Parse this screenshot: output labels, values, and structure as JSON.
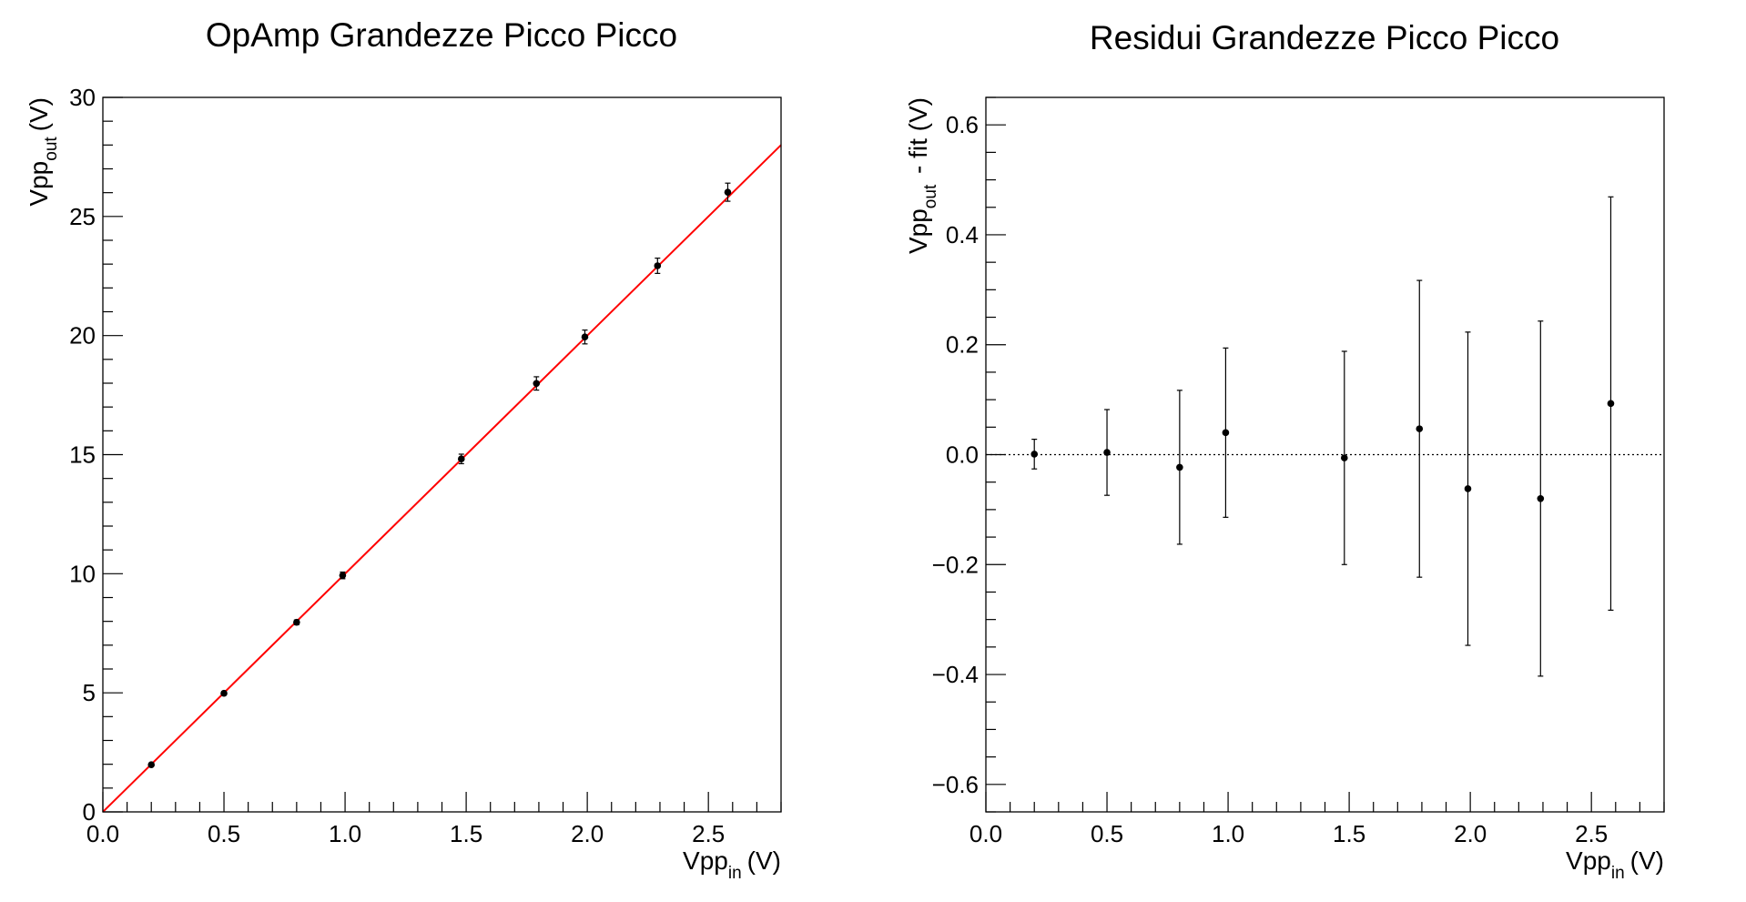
{
  "chart_data": [
    {
      "type": "scatter",
      "title": "OpAmp Grandezze Picco Picco",
      "xlabel": {
        "main": "Vpp",
        "sub": "in",
        "unit": "(V)"
      },
      "ylabel": {
        "main": "Vpp",
        "sub": "out",
        "unit": "(V)"
      },
      "xlim": [
        0,
        2.8
      ],
      "ylim": [
        0,
        30
      ],
      "xticks": [
        0,
        0.5,
        1.0,
        1.5,
        2.0,
        2.5
      ],
      "xtick_labels": [
        "0.0",
        "0.5",
        "1.0",
        "1.5",
        "2.0",
        "2.5"
      ],
      "yticks": [
        0,
        5,
        10,
        15,
        20,
        25,
        30
      ],
      "ytick_labels": [
        "0",
        "5",
        "10",
        "15",
        "20",
        "25",
        "30"
      ],
      "grid": false,
      "series": [
        {
          "x": [
            0.2,
            0.5,
            0.8,
            0.99,
            1.48,
            1.79,
            1.99,
            2.29,
            2.58
          ],
          "y": [
            1.98,
            4.98,
            7.96,
            9.93,
            14.82,
            17.99,
            19.94,
            22.93,
            26.02
          ],
          "yerr": [
            0.06,
            0.08,
            0.1,
            0.14,
            0.2,
            0.28,
            0.29,
            0.32,
            0.38
          ],
          "xerr": [
            0.005,
            0.005,
            0.007,
            0.008,
            0.008,
            0.01,
            0.01,
            0.011,
            0.012
          ],
          "color": "#000000"
        }
      ],
      "fit": {
        "type": "line",
        "x_range": [
          0,
          2.8
        ],
        "y_range": [
          0,
          28
        ],
        "color": "#ff0000"
      }
    },
    {
      "type": "scatter",
      "title": "Residui Grandezze Picco Picco",
      "xlabel": {
        "main": "Vpp",
        "sub": "in",
        "unit": "(V)"
      },
      "ylabel": {
        "main": "Vpp",
        "sub": "out",
        "unit": " - fit (V)"
      },
      "xlim": [
        0,
        2.8
      ],
      "ylim": [
        -0.65,
        0.65
      ],
      "xticks": [
        0,
        0.5,
        1.0,
        1.5,
        2.0,
        2.5
      ],
      "xtick_labels": [
        "0.0",
        "0.5",
        "1.0",
        "1.5",
        "2.0",
        "2.5"
      ],
      "yticks": [
        -0.6,
        -0.4,
        -0.2,
        0.0,
        0.2,
        0.4,
        0.6
      ],
      "ytick_labels": [
        "−0.6",
        "−0.4",
        "−0.2",
        "0.0",
        "0.2",
        "0.4",
        "0.6"
      ],
      "grid": false,
      "series": [
        {
          "x": [
            0.2,
            0.5,
            0.8,
            0.99,
            1.48,
            1.79,
            1.99,
            2.29,
            2.58
          ],
          "y": [
            0.001,
            0.004,
            -0.023,
            0.04,
            -0.006,
            0.047,
            -0.062,
            -0.08,
            0.093
          ],
          "yerr": [
            0.027,
            0.078,
            0.14,
            0.154,
            0.194,
            0.27,
            0.285,
            0.323,
            0.376
          ],
          "color": "#000000"
        }
      ],
      "reference_line": {
        "y": 0,
        "style": "dotted"
      }
    }
  ]
}
